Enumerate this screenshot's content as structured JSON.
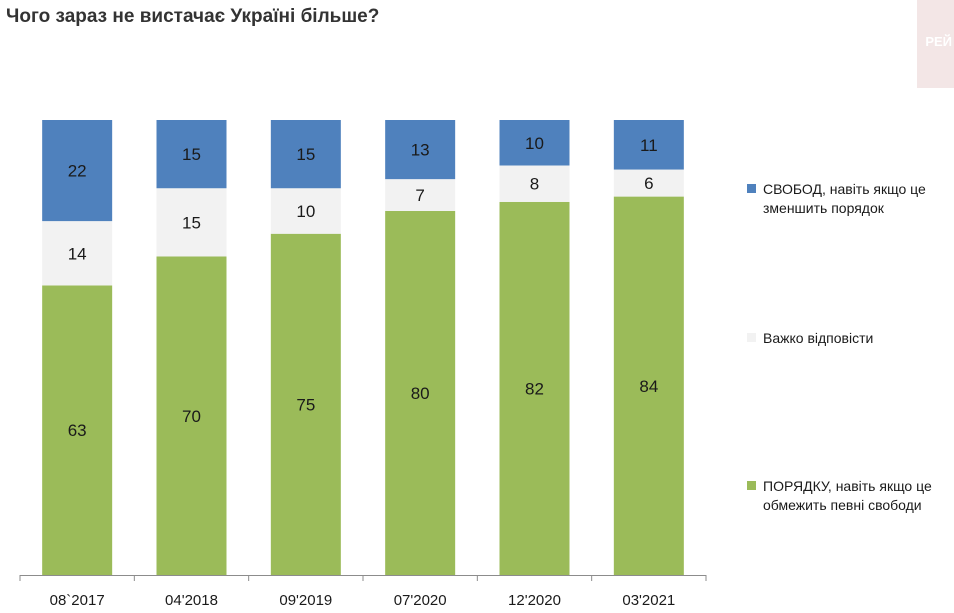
{
  "title": "Чого зараз не вистачає Україні більше?",
  "corner_badge": "РЕЙ",
  "colors": {
    "freedom": "#4f81bd",
    "hard": "#f2f2f2",
    "order": "#9bbb59",
    "axis": "#8c8c8c",
    "text": "#1a1a1a"
  },
  "legend": [
    {
      "key": "freedom",
      "label": "СВОБОД, навіть якщо це зменшить порядок"
    },
    {
      "key": "hard",
      "label": "Важко відповісти"
    },
    {
      "key": "order",
      "label": "ПОРЯДКУ, навіть якщо це обмежить певні свободи"
    }
  ],
  "chart_data": {
    "type": "bar",
    "stacked": true,
    "categories": [
      "08`2017",
      "04'2018",
      "09'2019",
      "07'2020",
      "12'2020",
      "03'2021"
    ],
    "series": [
      {
        "name": "ПОРЯДКУ, навіть якщо це обмежить певні свободи",
        "key": "order",
        "values": [
          63,
          70,
          75,
          80,
          82,
          84
        ]
      },
      {
        "name": "Важко відповісти",
        "key": "hard",
        "values": [
          14,
          15,
          10,
          7,
          8,
          6
        ]
      },
      {
        "name": "СВОБОД, навіть якщо це зменшить порядок",
        "key": "freedom",
        "values": [
          22,
          15,
          15,
          13,
          10,
          11
        ]
      }
    ],
    "ylim": [
      0,
      100
    ],
    "legend_position": "right",
    "grid": false
  }
}
